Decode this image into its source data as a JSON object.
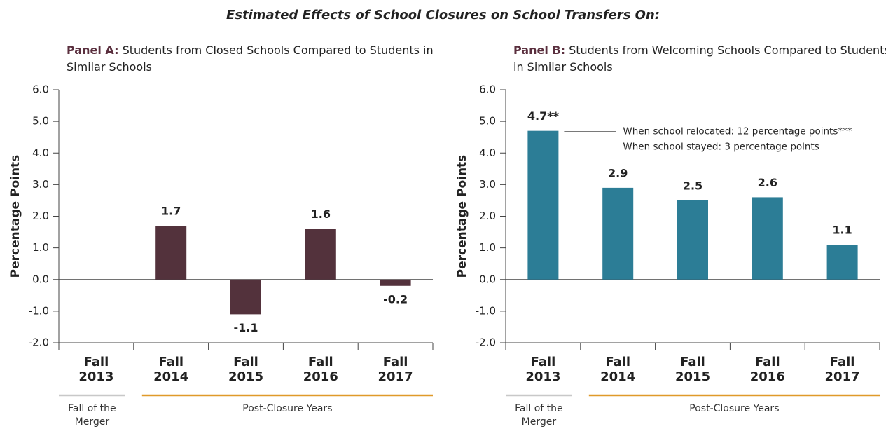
{
  "title": "Estimated Effects of School Closures on School Transfers On:",
  "chart_data": [
    {
      "type": "bar",
      "panel_label": "Panel A:",
      "subtitle": "Students from Closed Schools Compared to Students in Similar Schools",
      "y_label": "Percentage Points",
      "categories": [
        "Fall 2013",
        "Fall 2014",
        "Fall 2015",
        "Fall 2016",
        "Fall 2017"
      ],
      "values": [
        null,
        1.7,
        -1.1,
        1.6,
        -0.2
      ],
      "value_labels": [
        null,
        "1.7",
        "-1.1",
        "1.6",
        "-0.2"
      ],
      "color": "#53323c",
      "ylim": [
        -2,
        6
      ],
      "yticks": [
        {
          "value": -2,
          "label": "-2.0"
        },
        {
          "value": -1,
          "label": "-1.0"
        },
        {
          "value": 0,
          "label": "0.0"
        },
        {
          "value": 1,
          "label": "1.0"
        },
        {
          "value": 2,
          "label": "2.0"
        },
        {
          "value": 3,
          "label": "3.0"
        },
        {
          "value": 4,
          "label": "4.0"
        },
        {
          "value": 5,
          "label": "5.0"
        },
        {
          "value": 6,
          "label": "6.0"
        }
      ],
      "category_groups": [
        {
          "label": "Fall of the Merger",
          "categories": [
            "Fall 2013"
          ],
          "color": "#c8c8c8"
        },
        {
          "label": "Post-Closure Years",
          "categories": [
            "Fall 2014",
            "Fall 2015",
            "Fall 2016",
            "Fall 2017"
          ],
          "color": "#e09a2a"
        }
      ]
    },
    {
      "type": "bar",
      "panel_label": "Panel B:",
      "subtitle": "Students from Welcoming Schools Compared to Students in Similar Schools",
      "y_label": "Percentage Points",
      "categories": [
        "Fall 2013",
        "Fall 2014",
        "Fall 2015",
        "Fall 2016",
        "Fall 2017"
      ],
      "values": [
        4.7,
        2.9,
        2.5,
        2.6,
        1.1
      ],
      "value_labels": [
        "4.7**",
        "2.9",
        "2.5",
        "2.6",
        "1.1"
      ],
      "color": "#2c7d96",
      "ylim": [
        -2,
        6
      ],
      "yticks": [
        {
          "value": -2,
          "label": "-2.0"
        },
        {
          "value": -1,
          "label": "-1.0"
        },
        {
          "value": 0,
          "label": "0.0"
        },
        {
          "value": 1,
          "label": "1.0"
        },
        {
          "value": 2,
          "label": "2.0"
        },
        {
          "value": 3,
          "label": "3.0"
        },
        {
          "value": 4,
          "label": "4.0"
        },
        {
          "value": 5,
          "label": "5.0"
        },
        {
          "value": 6,
          "label": "6.0"
        }
      ],
      "annotations": [
        "When school relocated: 12 percentage points***",
        "When school stayed: 3 percentage points"
      ],
      "category_groups": [
        {
          "label": "Fall of the Merger",
          "categories": [
            "Fall 2013"
          ],
          "color": "#c8c8c8"
        },
        {
          "label": "Post-Closure Years",
          "categories": [
            "Fall 2014",
            "Fall 2015",
            "Fall 2016",
            "Fall 2017"
          ],
          "color": "#e09a2a"
        }
      ]
    }
  ]
}
